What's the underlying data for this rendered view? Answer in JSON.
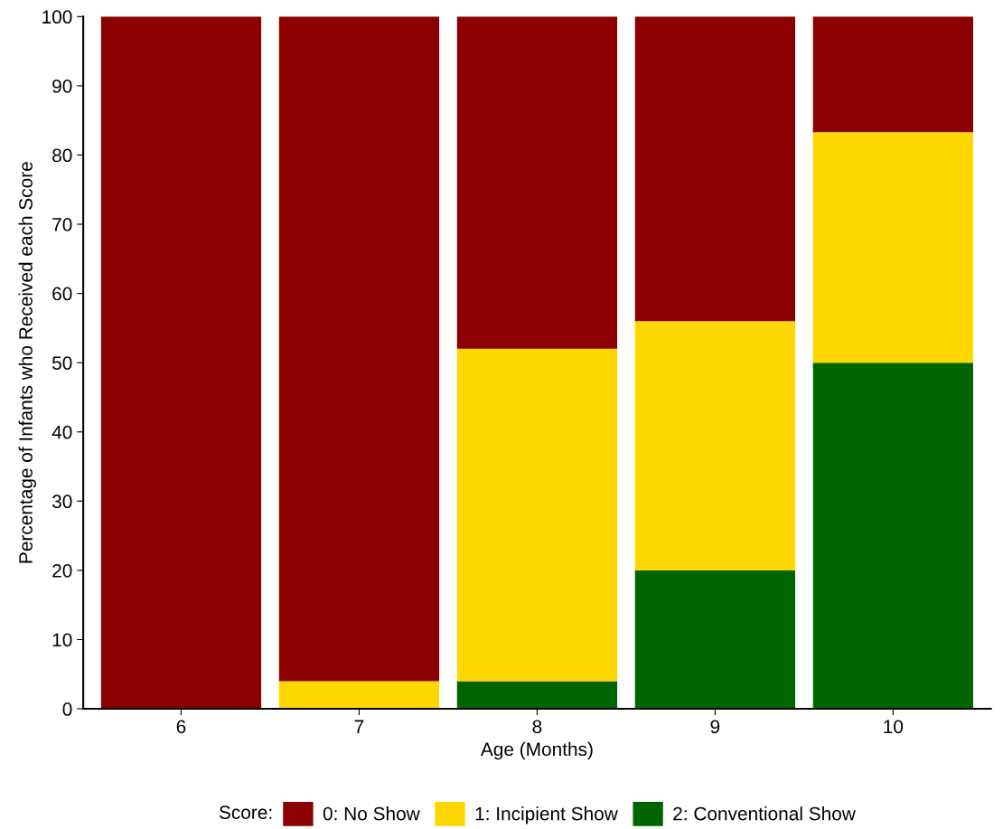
{
  "chart_data": {
    "type": "bar",
    "stacked": true,
    "xlabel": "Age (Months)",
    "ylabel": "Percentage of Infants who Received each Score",
    "legend_title": "Score:",
    "categories": [
      "6",
      "7",
      "8",
      "9",
      "10"
    ],
    "series": [
      {
        "name": "2: Conventional Show",
        "color": "#006400",
        "values": [
          0,
          0,
          4,
          20,
          50
        ]
      },
      {
        "name": "1: Incipient Show",
        "color": "#ffd700",
        "values": [
          0,
          4,
          48,
          36,
          33.3
        ]
      },
      {
        "name": "0: No Show",
        "color": "#8b0000",
        "values": [
          100,
          96,
          48,
          44,
          16.7
        ]
      }
    ],
    "ylim": [
      0,
      100
    ],
    "yticks": [
      0,
      10,
      20,
      30,
      40,
      50,
      60,
      70,
      80,
      90,
      100
    ],
    "grid": false,
    "legend": "bottom"
  }
}
